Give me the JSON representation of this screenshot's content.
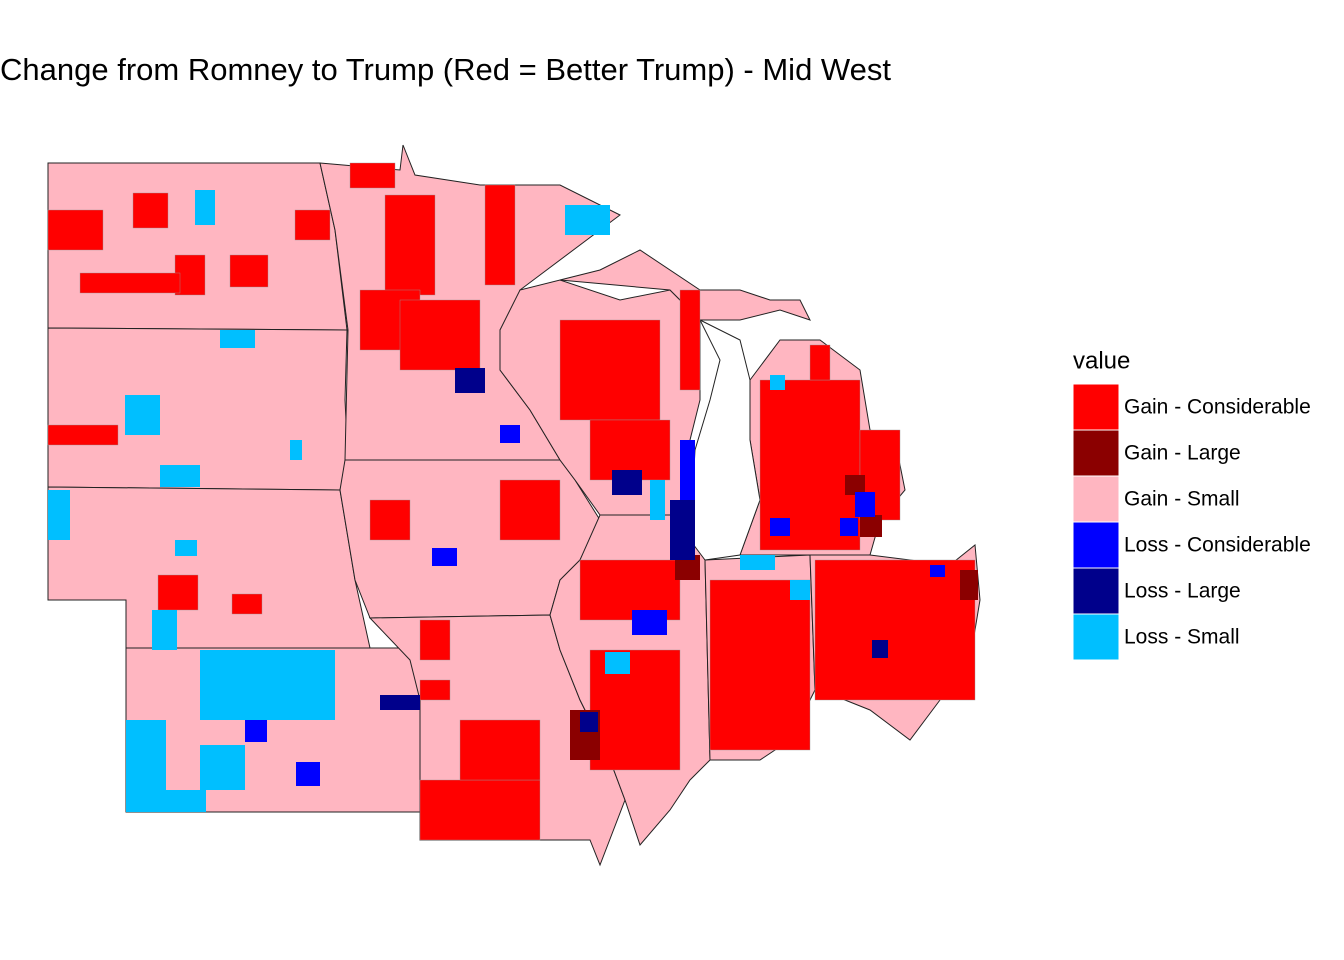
{
  "title": "Change from Romney to Trump (Red = Better Trump) - Mid West",
  "legend": {
    "title": "value",
    "items": [
      {
        "label": "Gain - Considerable",
        "color": "#ff0000"
      },
      {
        "label": "Gain - Large",
        "color": "#8b0000"
      },
      {
        "label": "Gain - Small",
        "color": "#ffb6c1"
      },
      {
        "label": "Loss - Considerable",
        "color": "#0000ff"
      },
      {
        "label": "Loss - Large",
        "color": "#00008b"
      },
      {
        "label": "Loss - Small",
        "color": "#00bfff"
      }
    ]
  }
}
